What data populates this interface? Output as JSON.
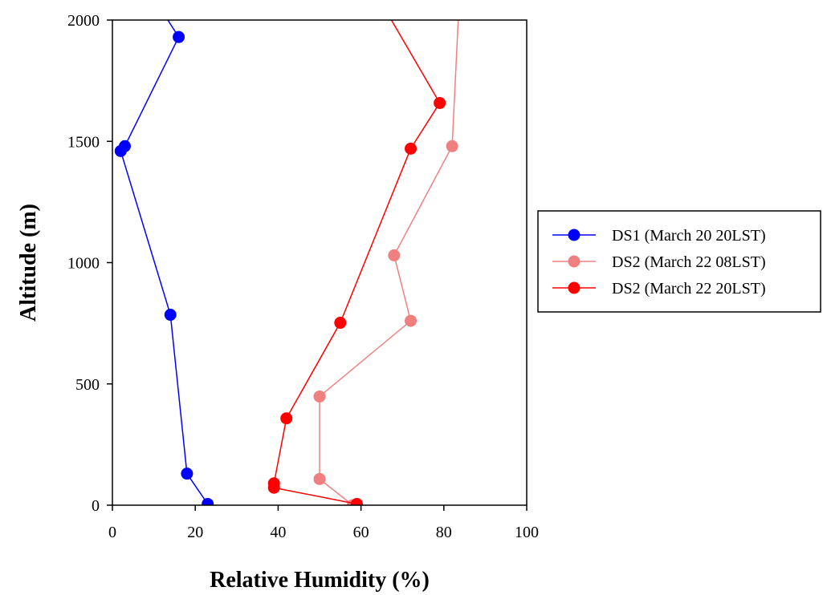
{
  "chart_data": {
    "type": "line",
    "xlabel": "Relative Humidity (%)",
    "ylabel": "Altitude (m)",
    "xlim": [
      0,
      100
    ],
    "ylim": [
      0,
      2000
    ],
    "xticks": [
      "0",
      "20",
      "40",
      "60",
      "80",
      "100"
    ],
    "yticks": [
      "0",
      "500",
      "1000",
      "1500",
      "2000"
    ],
    "grid": false,
    "legend_position": "right",
    "series": [
      {
        "name": "DS1 (March 20 20LST)",
        "color": "#0000ff",
        "points": [
          [
            23,
            5
          ],
          [
            18,
            130
          ],
          [
            14,
            785
          ],
          [
            2,
            1460
          ],
          [
            3,
            1480
          ],
          [
            16,
            1930
          ],
          [
            13,
            2010
          ]
        ]
      },
      {
        "name": "DS2 (March 22 08LST)",
        "color": "#f08080",
        "points": [
          [
            58,
            0
          ],
          [
            50,
            108
          ],
          [
            50,
            448
          ],
          [
            72,
            760
          ],
          [
            68,
            1030
          ],
          [
            82,
            1480
          ],
          [
            83.5,
            2010
          ]
        ]
      },
      {
        "name": "DS2 (March 22 20LST)",
        "color": "#ff0000",
        "points": [
          [
            59,
            5
          ],
          [
            39,
            72
          ],
          [
            39,
            90
          ],
          [
            42,
            358
          ],
          [
            55,
            752
          ],
          [
            72,
            1470
          ],
          [
            79,
            1658
          ],
          [
            67,
            2010
          ]
        ]
      }
    ]
  }
}
